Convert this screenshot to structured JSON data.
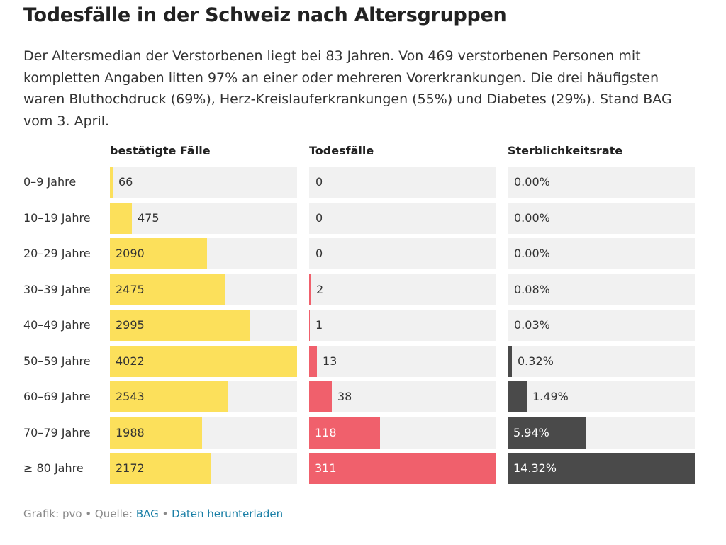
{
  "title": "Todesfälle in der Schweiz nach Altersgruppen",
  "subtitle": "Der Altersmedian der Verstorbenen liegt bei 83 Jahren. Von 469 verstorbenen Personen mit kompletten Angaben litten 97% an einer oder mehreren Vorerkrankungen. Die drei häufigsten waren Bluthochdruck (69%), Herz-Kreislauferkrankungen (55%) und Diabetes (29%). Stand BAG vom 3. April.",
  "footer": {
    "prefix": "Grafik: pvo • Quelle: ",
    "source": "BAG",
    "separator": " • ",
    "download": "Daten herunterladen"
  },
  "colors": {
    "cases": "#fce05b",
    "deaths": "#f0606c",
    "rate": "#4a4a4a",
    "cell_bg": "#f1f1f1",
    "link": "#1a7fa6"
  },
  "chart_data": {
    "type": "bar",
    "categories": [
      "0–9 Jahre",
      "10–19 Jahre",
      "20–29 Jahre",
      "30–39 Jahre",
      "40–49 Jahre",
      "50–59 Jahre",
      "60–69 Jahre",
      "70–79 Jahre",
      "≥ 80 Jahre"
    ],
    "series": [
      {
        "name": "bestätigte Fälle",
        "values": [
          66,
          475,
          2090,
          2475,
          2995,
          4022,
          2543,
          1988,
          2172
        ],
        "labels": [
          "66",
          "475",
          "2090",
          "2475",
          "2995",
          "4022",
          "2543",
          "1988",
          "2172"
        ],
        "max": 4022
      },
      {
        "name": "Todesfälle",
        "values": [
          0,
          0,
          0,
          2,
          1,
          13,
          38,
          118,
          311
        ],
        "labels": [
          "0",
          "0",
          "0",
          "2",
          "1",
          "13",
          "38",
          "118",
          "311"
        ],
        "max": 311
      },
      {
        "name": "Sterblichkeitsrate",
        "values": [
          0.0,
          0.0,
          0.0,
          0.08,
          0.03,
          0.32,
          1.49,
          5.94,
          14.32
        ],
        "labels": [
          "0.00%",
          "0.00%",
          "0.00%",
          "0.08%",
          "0.03%",
          "0.32%",
          "1.49%",
          "5.94%",
          "14.32%"
        ],
        "max": 14.32
      }
    ]
  }
}
